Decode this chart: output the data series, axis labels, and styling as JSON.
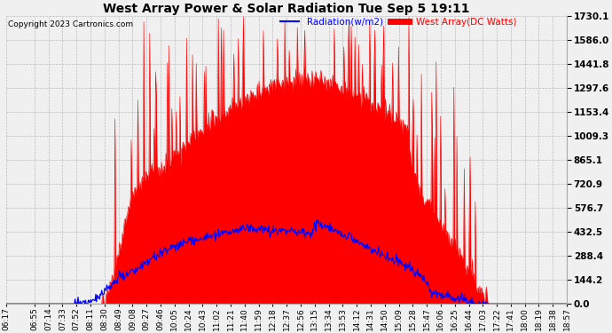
{
  "title": "West Array Power & Solar Radiation Tue Sep 5 19:11",
  "copyright": "Copyright 2023 Cartronics.com",
  "legend_radiation": "Radiation(w/m2)",
  "legend_west_array": "West Array(DC Watts)",
  "ylabel_right_values": [
    1730.1,
    1586.0,
    1441.8,
    1297.6,
    1153.4,
    1009.3,
    865.1,
    720.9,
    576.7,
    432.5,
    288.4,
    144.2,
    0.0
  ],
  "ymax": 1730.1,
  "ymin": 0.0,
  "radiation_fill_color": "#ff0000",
  "west_array_line_color": "#0000ff",
  "background_color": "#f0f0f0",
  "grid_color": "#bbbbbb",
  "title_color": "black",
  "copyright_color": "black",
  "tick_label_size": 6.5,
  "time_labels": [
    "06:17",
    "06:55",
    "07:14",
    "07:33",
    "07:52",
    "08:11",
    "08:30",
    "08:49",
    "09:08",
    "09:27",
    "09:46",
    "10:05",
    "10:24",
    "10:43",
    "11:02",
    "11:21",
    "11:40",
    "11:59",
    "12:18",
    "12:37",
    "12:56",
    "13:15",
    "13:34",
    "13:53",
    "14:12",
    "14:31",
    "14:50",
    "15:09",
    "15:28",
    "15:47",
    "16:06",
    "16:25",
    "16:44",
    "17:03",
    "17:22",
    "17:41",
    "18:00",
    "18:19",
    "18:38",
    "18:57"
  ]
}
